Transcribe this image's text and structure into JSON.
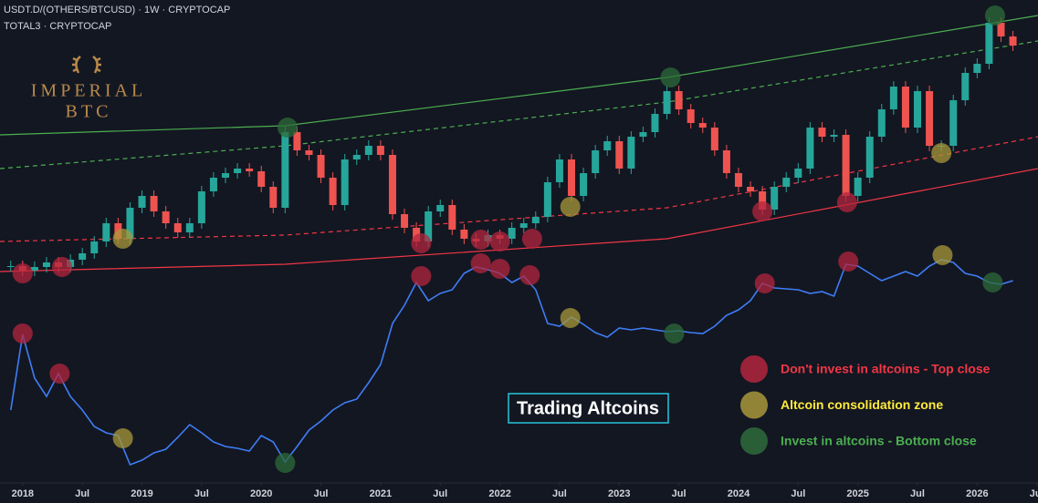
{
  "chart_data": {
    "type": "candlestick",
    "title": "USDT.D/(OTHERS/BTCUSD) · 1W · CRYPTOCAP",
    "subtitle": "TOTAL3 · CRYPTOCAP",
    "logo": [
      "IMPERIAL",
      "BTC"
    ],
    "annotation": "Trading Altcoins",
    "xlim": [
      2017.81,
      2026.51
    ],
    "ylim": [
      0,
      530
    ],
    "xticks": [
      2018,
      {
        "value": 2018.5,
        "label": "Jul"
      },
      2019,
      {
        "value": 2019.5,
        "label": "Jul"
      },
      2020,
      {
        "value": 2020.5,
        "label": "Jul"
      },
      2021,
      {
        "value": 2021.5,
        "label": "Jul"
      },
      2022,
      {
        "value": 2022.5,
        "label": "Jul"
      },
      2023,
      {
        "value": 2023.5,
        "label": "Jul"
      },
      2024,
      {
        "value": 2024.5,
        "label": "Jul"
      },
      2025,
      {
        "value": 2025.5,
        "label": "Jul"
      },
      2026,
      {
        "value": 2026.5,
        "label": "Jul"
      }
    ],
    "x": [
      2017.9,
      2018,
      2018.1,
      2018.2,
      2018.3,
      2018.4,
      2018.5,
      2018.6,
      2018.7,
      2018.8,
      2018.9,
      2019,
      2019.1,
      2019.2,
      2019.3,
      2019.4,
      2019.5,
      2019.6,
      2019.7,
      2019.8,
      2019.9,
      2020,
      2020.1,
      2020.2,
      2020.3,
      2020.4,
      2020.5,
      2020.6,
      2020.7,
      2020.8,
      2020.9,
      2021,
      2021.1,
      2021.2,
      2021.3,
      2021.4,
      2021.5,
      2021.6,
      2021.7,
      2021.8,
      2021.9,
      2022,
      2022.1,
      2022.2,
      2022.3,
      2022.4,
      2022.5,
      2022.6,
      2022.7,
      2022.8,
      2022.9,
      2023,
      2023.1,
      2023.2,
      2023.3,
      2023.4,
      2023.5,
      2023.6,
      2023.7,
      2023.8,
      2023.9,
      2024,
      2024.1,
      2024.2,
      2024.3,
      2024.4,
      2024.5,
      2024.6,
      2024.7,
      2024.8,
      2024.9,
      2025,
      2025.1,
      2025.2,
      2025.3,
      2025.4,
      2025.5,
      2025.6,
      2025.7,
      2025.8,
      2025.9,
      2026,
      2026.1,
      2026.2,
      2026.3
    ],
    "candles": {
      "up_color": "#26a69a",
      "down_color": "#ef5350",
      "values": [
        238,
        233,
        237,
        242,
        237,
        245,
        252,
        265,
        285,
        268,
        302,
        315,
        298,
        285,
        275,
        285,
        320,
        335,
        340,
        345,
        342,
        325,
        302,
        385,
        365,
        360,
        335,
        305,
        355,
        360,
        370,
        360,
        295,
        280,
        265,
        298,
        305,
        278,
        268,
        265,
        272,
        268,
        280,
        285,
        292,
        330,
        355,
        315,
        340,
        365,
        375,
        345,
        380,
        385,
        405,
        430,
        410,
        395,
        390,
        365,
        340,
        325,
        320,
        300,
        325,
        335,
        345,
        390,
        380,
        382,
        315,
        335,
        380,
        410,
        435,
        390,
        430,
        370,
        370,
        420,
        450,
        460,
        505,
        490,
        480
      ]
    },
    "line": {
      "color": "#3f7df5",
      "values": [
        80,
        163,
        115,
        95,
        120,
        95,
        80,
        62,
        55,
        52,
        20,
        25,
        33,
        37,
        50,
        64,
        55,
        45,
        40,
        38,
        35,
        52,
        45,
        23,
        40,
        58,
        68,
        80,
        88,
        92,
        110,
        130,
        175,
        195,
        220,
        200,
        208,
        212,
        230,
        237,
        234,
        230,
        220,
        227,
        212,
        175,
        172,
        182,
        174,
        165,
        160,
        170,
        168,
        170,
        168,
        166,
        167,
        165,
        164,
        172,
        184,
        190,
        200,
        219,
        214,
        213,
        212,
        208,
        210,
        205,
        240,
        238,
        230,
        222,
        227,
        232,
        227,
        238,
        245,
        242,
        230,
        227,
        220,
        218,
        222
      ]
    },
    "channels": [
      {
        "color": "#4caf50",
        "dashed": false,
        "x": [
          2017.81,
          2020.2,
          2023.4,
          2026.51
        ],
        "values": [
          382,
          392,
          445,
          513
        ]
      },
      {
        "color": "#4caf50",
        "dashed": true,
        "x": [
          2017.81,
          2020.2,
          2023.4,
          2026.51
        ],
        "values": [
          345,
          370,
          418,
          485
        ]
      },
      {
        "color": "#f23645",
        "dashed": true,
        "x": [
          2017.81,
          2020.2,
          2023.4,
          2026.51
        ],
        "values": [
          265,
          272,
          302,
          380
        ]
      },
      {
        "color": "#f23645",
        "dashed": false,
        "x": [
          2017.81,
          2020.2,
          2023.4,
          2026.51
        ],
        "values": [
          232,
          240,
          268,
          345
        ]
      }
    ],
    "markers": [
      {
        "name": "Don't invest in altcoins - Top close",
        "color": "#b3263d",
        "text_color": "#f23645",
        "x": [
          2018,
          2018.33,
          2021.34,
          2021.84,
          2022,
          2022.27,
          2024.2,
          2024.91,
          2018,
          2018.31,
          2021.34,
          2021.84,
          2022,
          2022.25,
          2024.22,
          2024.92
        ],
        "values": [
          230,
          237,
          263,
          267,
          265,
          268,
          298,
          308,
          164,
          120,
          227,
          241,
          235,
          228,
          219,
          243
        ]
      },
      {
        "name": "Altcoin consolidation zone",
        "color": "#a8983a",
        "text_color": "#ffeb3b",
        "x": [
          2018.84,
          2022.59,
          2025.7,
          2018.84,
          2022.59,
          2025.71
        ],
        "values": [
          268,
          303,
          362,
          49,
          181,
          250
        ]
      },
      {
        "name": "Invest in altcoins - Bottom close",
        "color": "#2e6b3a",
        "text_color": "#4caf50",
        "x": [
          2020.22,
          2023.43,
          2026.15,
          2020.2,
          2023.46,
          2026.13
        ],
        "values": [
          390,
          445,
          513,
          22,
          164,
          220
        ]
      }
    ]
  }
}
